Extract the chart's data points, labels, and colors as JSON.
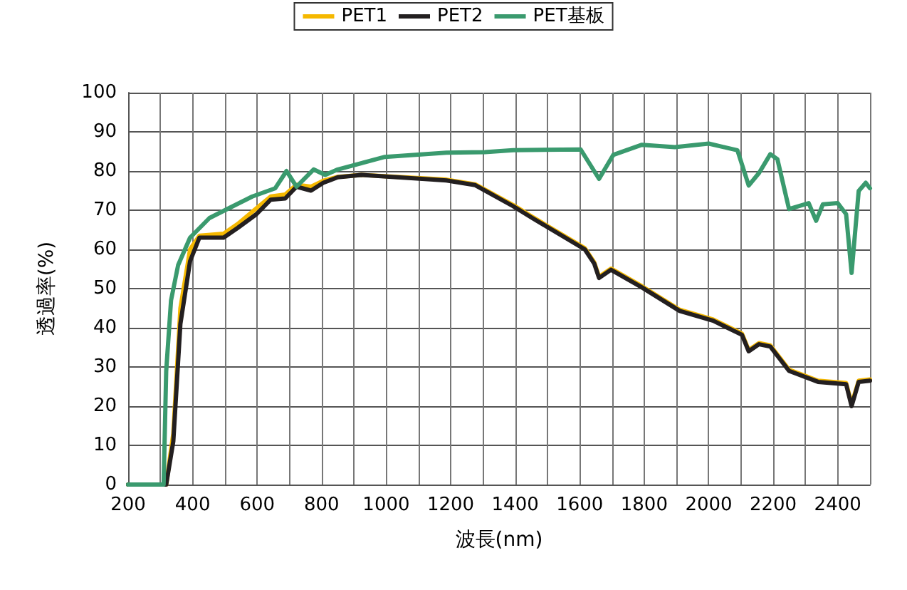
{
  "chart_data": {
    "type": "line",
    "xlabel": "波長(nm)",
    "ylabel": "透過率(%)",
    "xlim": [
      200,
      2500
    ],
    "xticks": [
      200,
      {
        "value": 300,
        "label": null
      },
      400,
      {
        "value": 500,
        "label": null
      },
      600,
      {
        "value": 700,
        "label": null
      },
      800,
      {
        "value": 900,
        "label": null
      },
      1000,
      {
        "value": 1100,
        "label": null
      },
      1200,
      {
        "value": 1300,
        "label": null
      },
      1400,
      {
        "value": 1500,
        "label": null
      },
      1600,
      {
        "value": 1700,
        "label": null
      },
      1800,
      {
        "value": 1900,
        "label": null
      },
      2000,
      {
        "value": 2100,
        "label": null
      },
      2200,
      {
        "value": 2300,
        "label": null
      },
      2400,
      {
        "value": 2500,
        "label": null
      }
    ],
    "ylim": [
      0,
      100
    ],
    "yticks": [
      0,
      10,
      20,
      30,
      40,
      50,
      60,
      70,
      80,
      90,
      100
    ],
    "grid": true,
    "legend": "top",
    "marker": "none",
    "line_style": "solid",
    "series": [
      {
        "name": "PET1",
        "color": "#f5b800",
        "x": [
          200,
          318,
          340,
          362,
          392,
          421,
          496,
          540,
          598,
          642,
          687,
          722,
          767,
          805,
          850,
          923,
          1187,
          1276,
          1394,
          1453,
          1616,
          1645,
          1660,
          1697,
          1793,
          1910,
          2014,
          2103,
          2124,
          2156,
          2191,
          2221,
          2249,
          2339,
          2426,
          2443,
          2465,
          2500
        ],
        "values": [
          0,
          0,
          13,
          45,
          60,
          63.5,
          64,
          66.5,
          70.5,
          73.5,
          74,
          76.5,
          76,
          77.5,
          78.5,
          79,
          77.8,
          76.6,
          71.3,
          68.3,
          60.3,
          56.7,
          53,
          55.1,
          50.6,
          44.6,
          42.1,
          38.5,
          34.3,
          36.1,
          35.5,
          32.3,
          29.3,
          26.5,
          25.9,
          20.5,
          26.5,
          26.8
        ]
      },
      {
        "name": "PET2",
        "color": "#231f20",
        "x": [
          200,
          318,
          340,
          362,
          392,
          421,
          496,
          540,
          598,
          642,
          687,
          722,
          767,
          805,
          850,
          923,
          1187,
          1276,
          1394,
          1453,
          1616,
          1645,
          1660,
          1697,
          1793,
          1910,
          2014,
          2103,
          2124,
          2156,
          2191,
          2221,
          2249,
          2339,
          2426,
          2443,
          2465,
          2500
        ],
        "values": [
          0,
          0,
          11,
          41,
          57,
          63,
          63,
          65.5,
          69,
          72.7,
          73,
          76,
          75,
          77,
          78.4,
          79,
          77.6,
          76.4,
          71,
          68,
          60,
          56.4,
          52.7,
          54.8,
          50.3,
          44.3,
          41.8,
          38.2,
          34,
          35.8,
          35.2,
          32,
          29,
          26.2,
          25.6,
          20,
          26.2,
          26.5
        ]
      },
      {
        "name": "PET基板",
        "color": "#3a9a6e",
        "x": [
          200,
          310,
          318,
          333,
          355,
          392,
          452,
          500,
          585,
          656,
          691,
          722,
          775,
          811,
          850,
          996,
          1187,
          1306,
          1394,
          1603,
          1660,
          1704,
          1793,
          1895,
          2000,
          2089,
          2124,
          2156,
          2191,
          2213,
          2249,
          2310,
          2333,
          2354,
          2400,
          2426,
          2443,
          2465,
          2487,
          2500
        ],
        "values": [
          0,
          0,
          29,
          47,
          56,
          63,
          68,
          70,
          73.5,
          75.6,
          80,
          76,
          80.4,
          79,
          80.4,
          83.6,
          84.7,
          84.8,
          85.3,
          85.5,
          78,
          84.1,
          86.7,
          86.1,
          87,
          85.3,
          76.3,
          79.5,
          84.3,
          83,
          70.3,
          71.8,
          67.3,
          71.5,
          71.8,
          69,
          54,
          74.9,
          77,
          75.6
        ]
      }
    ]
  }
}
